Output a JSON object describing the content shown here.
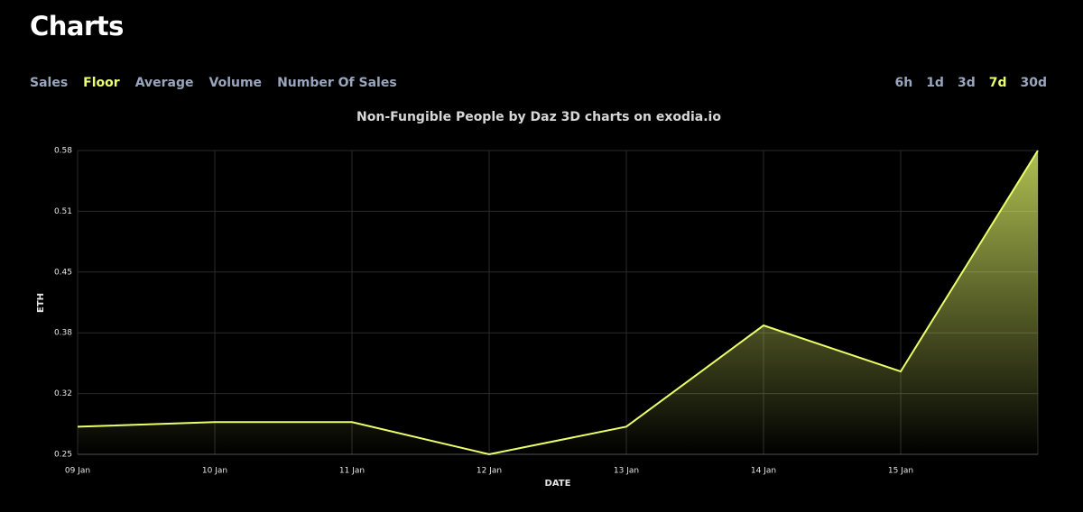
{
  "header": {
    "title": "Charts"
  },
  "tabs": [
    "Sales",
    "Floor",
    "Average",
    "Volume",
    "Number Of Sales"
  ],
  "active_tab": 1,
  "ranges": [
    "6h",
    "1d",
    "3d",
    "7d",
    "30d"
  ],
  "active_range": 3,
  "chart_data": {
    "type": "line",
    "title": "Non-Fungible People by Daz 3D charts on exodia.io",
    "x_label": "DATE",
    "y_label": "ETH",
    "categories": [
      "09 Jan",
      "10 Jan",
      "11 Jan",
      "12 Jan",
      "13 Jan",
      "14 Jan",
      "15 Jan",
      null
    ],
    "values": [
      0.28,
      0.285,
      0.285,
      0.25,
      0.28,
      0.39,
      0.34,
      0.58
    ],
    "color": "#eaff6b",
    "ylim": [
      0.25,
      0.58
    ],
    "yticks": [
      0.25,
      {
        "value": 0.316,
        "label": "0.32"
      },
      {
        "value": 0.382,
        "label": "0.38"
      },
      {
        "value": 0.448,
        "label": "0.45"
      },
      {
        "value": 0.514,
        "label": "0.51"
      },
      0.58
    ],
    "grid": true,
    "area": true
  }
}
